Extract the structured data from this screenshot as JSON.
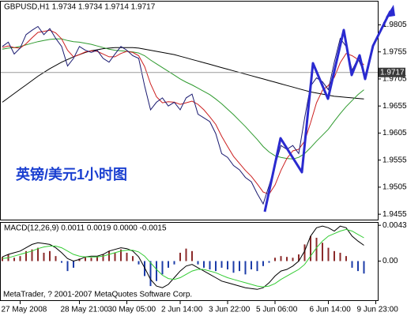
{
  "chart_data": [
    {
      "type": "line",
      "title": "GBPUSD,H1  1.9734 1.9734 1.9714 1.9717",
      "annotation": "英镑/美元1小时图",
      "categories": [
        null,
        null,
        null,
        "27 May 2008",
        null,
        null,
        null,
        null,
        null,
        null,
        null,
        null,
        null,
        "28 May 21:00",
        null,
        null,
        null,
        null,
        null,
        null,
        null,
        "30 May 05:00",
        null,
        null,
        null,
        null,
        null,
        null,
        null,
        null,
        "2 Jun 14:00",
        null,
        null,
        null,
        null,
        null,
        null,
        null,
        "3 Jun 22:00",
        null,
        null,
        null,
        null,
        null,
        null,
        null,
        "5 Jun 06:00",
        null,
        null,
        null,
        null,
        null,
        null,
        null,
        null,
        "6 Jun 14:00",
        null,
        null,
        null,
        null,
        null,
        null,
        null,
        "9 Jun 23:00"
      ],
      "series": [
        {
          "color": "#000000",
          "values": [
            1.9662,
            1.967,
            1.9678,
            1.9686,
            1.9694,
            1.9702,
            1.971,
            1.9717,
            1.9724,
            1.973,
            1.9736,
            1.9741,
            1.9746,
            1.975,
            1.9754,
            1.9757,
            1.9759,
            1.9761,
            1.9762,
            1.9763,
            1.9763,
            1.9763,
            1.9763,
            1.9762,
            1.976,
            1.9758,
            1.9756,
            1.9754,
            1.9752,
            1.975,
            1.9747,
            1.9744,
            1.9741,
            1.9738,
            1.9735,
            1.9732,
            1.9729,
            1.9726,
            1.9723,
            1.972,
            1.9717,
            1.9714,
            1.9711,
            1.9708,
            1.9705,
            1.9702,
            1.9699,
            1.9696,
            1.9693,
            1.969,
            1.9687,
            1.9684,
            1.9681,
            1.9679,
            1.9677,
            1.9675,
            1.9673,
            1.9672,
            1.9671,
            1.967,
            1.9669,
            1.9668,
            null,
            null
          ]
        },
        {
          "color": "#2e9a2e",
          "values": [
            1.976,
            1.9762,
            1.9763,
            1.9765,
            1.9768,
            1.9771,
            1.9774,
            1.9776,
            1.9778,
            1.9779,
            1.9779,
            1.9776,
            1.9774,
            1.9773,
            1.9771,
            1.9769,
            1.9766,
            1.9763,
            1.976,
            1.9758,
            1.9757,
            1.9756,
            1.9755,
            1.9753,
            1.9748,
            1.974,
            1.9733,
            1.9726,
            1.9719,
            1.9712,
            1.9705,
            1.9699,
            1.9694,
            1.9688,
            1.9682,
            1.9676,
            1.9668,
            1.9659,
            1.9649,
            1.9639,
            1.9628,
            1.9617,
            1.9605,
            1.9593,
            1.958,
            1.957,
            1.9563,
            1.956,
            1.9558,
            1.9557,
            1.956,
            1.9567,
            1.9578,
            1.959,
            1.9601,
            1.9612,
            1.9627,
            1.9641,
            1.9654,
            1.9665,
            1.9676,
            1.9685,
            null,
            null
          ]
        },
        {
          "color": "#cc2020",
          "values": [
            1.9763,
            1.9766,
            1.9763,
            1.9762,
            1.977,
            1.9781,
            1.9791,
            1.9793,
            1.9795,
            1.979,
            1.9779,
            1.9758,
            1.9746,
            1.975,
            1.9755,
            1.9757,
            1.9756,
            1.9751,
            1.9746,
            1.9746,
            1.9752,
            1.9756,
            1.9754,
            1.9748,
            1.9728,
            1.9696,
            1.9672,
            1.9661,
            1.9663,
            1.9662,
            1.9658,
            1.9661,
            1.9664,
            1.9658,
            1.9648,
            1.9635,
            1.9621,
            1.9599,
            1.958,
            1.9562,
            1.9549,
            1.9536,
            1.9525,
            1.9511,
            1.9496,
            1.9492,
            1.9509,
            1.9536,
            1.9558,
            1.9572,
            1.9575,
            1.959,
            1.9624,
            1.9661,
            1.9684,
            1.9693,
            1.9708,
            1.9735,
            1.9752,
            1.9748,
            1.9741,
            1.9731,
            null,
            null
          ]
        },
        {
          "color": "#1a1a70",
          "values": [
            1.9765,
            1.9773,
            1.9751,
            1.9762,
            1.9787,
            1.9795,
            1.9802,
            1.9787,
            1.9798,
            1.978,
            1.9765,
            1.9729,
            1.9743,
            1.9765,
            1.9758,
            1.9754,
            1.9758,
            1.9743,
            1.9736,
            1.9751,
            1.9765,
            1.9758,
            1.9748,
            1.9743,
            1.9692,
            1.9648,
            1.9662,
            1.967,
            1.9655,
            1.9662,
            1.9648,
            1.967,
            1.9677,
            1.964,
            1.9633,
            1.9626,
            1.9604,
            1.9567,
            1.956,
            1.9545,
            1.9537,
            1.9523,
            1.9515,
            1.9493,
            1.9474,
            1.9508,
            1.9545,
            1.9582,
            1.9575,
            1.9582,
            1.9567,
            1.9633,
            1.9692,
            1.9707,
            1.97,
            1.9685,
            1.9736,
            1.978,
            1.9765,
            1.9721,
            1.9743,
            1.9717,
            null,
            null
          ]
        }
      ],
      "current_price": 1.9717,
      "ylim": [
        1.9445,
        1.9848
      ],
      "yticks": [
        1.9455,
        1.9505,
        1.9555,
        1.9605,
        1.9655,
        1.9705,
        1.9755,
        1.9805
      ]
    },
    {
      "type": "macd",
      "title": "MACD(12,26,9) 0.0011 0.0019 0.0000 -0.0015",
      "histogram": {
        "up_color": "#8b2a2a",
        "down_color": "#1c3ca8",
        "values": [
          0.0005,
          0.0008,
          0.0004,
          0.0006,
          0.0012,
          0.0014,
          0.0016,
          0.001,
          0.0012,
          0.0006,
          -0.0002,
          -0.0012,
          -0.0008,
          0.0003,
          0.0005,
          0.0004,
          0.0005,
          0.0008,
          0.0012,
          0.001,
          0.0014,
          0.001,
          0.0006,
          -0.0004,
          -0.0018,
          -0.003,
          -0.0024,
          -0.0016,
          -0.0008,
          -0.0004,
          0.001,
          0.0015,
          0.0012,
          -0.0004,
          -0.0008,
          -0.001,
          -0.0012,
          -0.0008,
          -0.001,
          -0.0014,
          -0.0012,
          -0.0016,
          -0.001,
          -0.0012,
          -0.0006,
          -0.0002,
          0.0004,
          0.0006,
          0.0005,
          0.0004,
          0.0008,
          0.002,
          0.003,
          0.0028,
          0.0022,
          0.0016,
          0.0012,
          0.001,
          0.0006,
          -0.0008,
          -0.0012,
          -0.0015,
          null,
          null
        ]
      },
      "series": [
        {
          "color": "#000000",
          "values": [
            0.0005,
            0.0008,
            0.001,
            0.0012,
            0.0016,
            0.002,
            0.0022,
            0.0021,
            0.002,
            0.0016,
            0.001,
            0.0003,
            0.0,
            0.0002,
            0.0005,
            0.0006,
            0.0006,
            0.0008,
            0.0012,
            0.0014,
            0.0016,
            0.0015,
            0.0012,
            0.0005,
            -0.0008,
            -0.0022,
            -0.003,
            -0.0032,
            -0.0028,
            -0.002,
            -0.0012,
            -0.0006,
            -0.0004,
            -0.0008,
            -0.0012,
            -0.0016,
            -0.002,
            -0.0024,
            -0.0026,
            -0.0028,
            -0.003,
            -0.0032,
            -0.0033,
            -0.0034,
            -0.0032,
            -0.0026,
            -0.0018,
            -0.0012,
            -0.001,
            -0.0006,
            0.0,
            0.0012,
            0.003,
            0.004,
            0.0042,
            0.004,
            0.0036,
            0.0042,
            0.004,
            0.003,
            0.0024,
            0.0019,
            null,
            null
          ]
        },
        {
          "color": "#33cc33",
          "values": [
            0.0003,
            0.0004,
            0.0006,
            0.0008,
            0.001,
            0.0012,
            0.0015,
            0.0017,
            0.0018,
            0.0018,
            0.0016,
            0.0012,
            0.0008,
            0.0006,
            0.0005,
            0.0005,
            0.0005,
            0.0006,
            0.0008,
            0.001,
            0.0012,
            0.0013,
            0.0013,
            0.0011,
            0.0006,
            -0.0002,
            -0.001,
            -0.0017,
            -0.0021,
            -0.0022,
            -0.002,
            -0.0016,
            -0.0012,
            -0.001,
            -0.001,
            -0.0012,
            -0.0014,
            -0.0017,
            -0.002,
            -0.0022,
            -0.0024,
            -0.0026,
            -0.0028,
            -0.003,
            -0.0031,
            -0.003,
            -0.0027,
            -0.0022,
            -0.0018,
            -0.0014,
            -0.001,
            -0.0004,
            0.0006,
            0.0016,
            0.0024,
            0.003,
            0.0033,
            0.0036,
            0.0038,
            0.0036,
            0.0032,
            0.0028,
            null,
            null
          ]
        }
      ],
      "ylim": [
        -0.0047,
        0.0046
      ],
      "yticks": [
        0.0043,
        {
          "value": 0,
          "label": "0.00"
        }
      ]
    }
  ],
  "footer": "MetaTrader, ? 2001-2007 MetaQuotes Software Corp."
}
